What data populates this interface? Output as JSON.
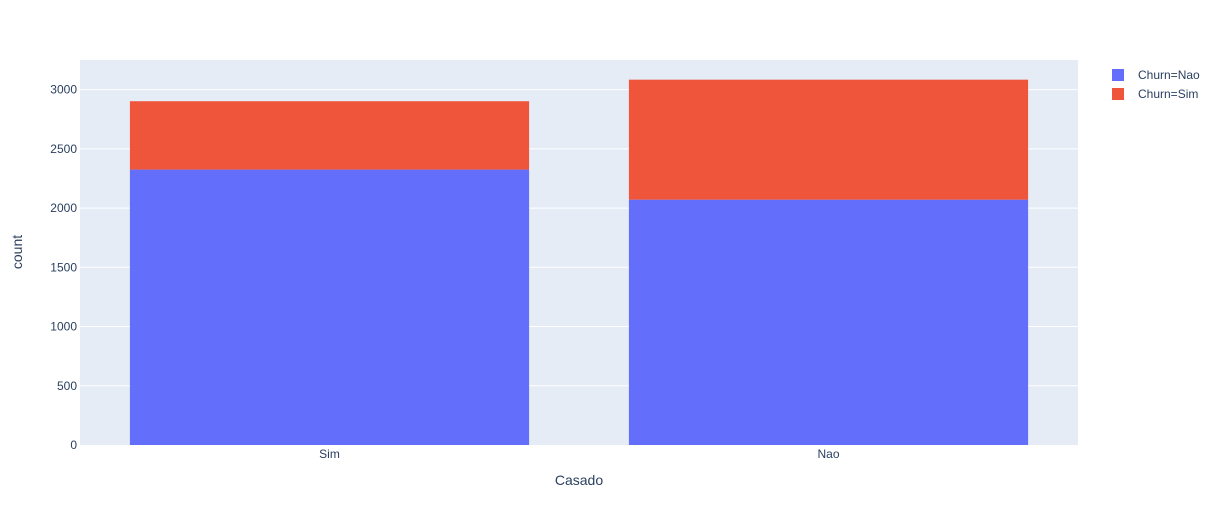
{
  "chart_data": {
    "type": "bar",
    "barmode": "stack",
    "categories": [
      "Sim",
      "Nao"
    ],
    "series": [
      {
        "name": "Churn=Nao",
        "values": [
          2325,
          2071
        ],
        "color": "#636efa"
      },
      {
        "name": "Churn=Sim",
        "values": [
          577,
          1013
        ],
        "color": "#ef553b"
      }
    ],
    "xlabel": "Casado",
    "ylabel": "count",
    "ylim": [
      0,
      3250
    ],
    "yticks": [
      0,
      500,
      1000,
      1500,
      2000,
      2500,
      3000
    ],
    "grid": true,
    "legend_position": "top-right",
    "colors": {
      "plot_bg": "#e5ecf6",
      "grid": "#ffffff",
      "text": "#2a3f5f"
    }
  }
}
